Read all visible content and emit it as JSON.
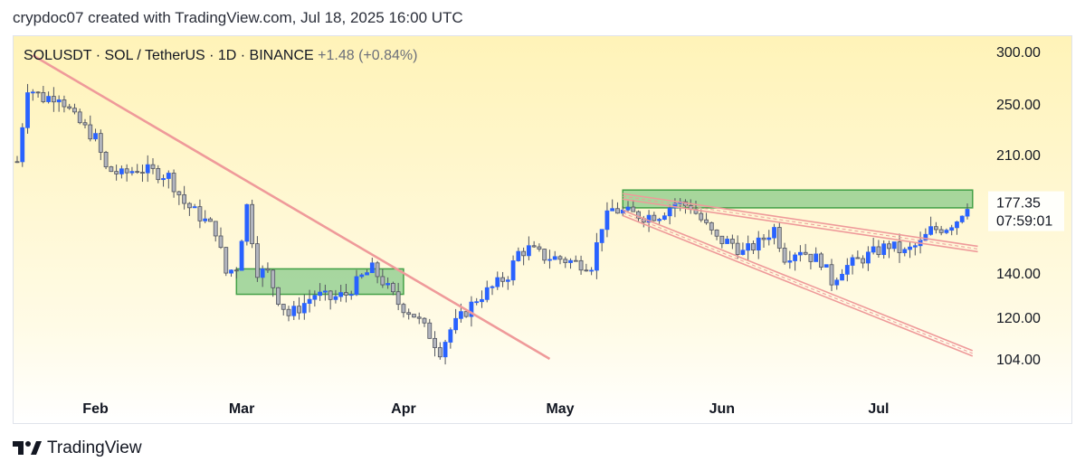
{
  "header": {
    "attribution": "crypdoc07 created with TradingView.com, Jul 18, 2025 16:00 UTC"
  },
  "legend": {
    "symbol_line": "SOLUSDT · SOL / TetherUS · 1D · BINANCE",
    "change": "+1.48 (+0.84%)"
  },
  "footer": {
    "brand": "TradingView"
  },
  "colors": {
    "up": "#2962ff",
    "down": "#b2b5be",
    "up_border": "#2962ff",
    "down_border": "#50535e",
    "wick": "#50535e",
    "trendline": "#ef9a9a",
    "zone_fill": "#81c784",
    "zone_border": "#43a047",
    "bg_top": "#fff2b3",
    "bg_bottom": "#ffffff",
    "price_tag": "#ffffff"
  },
  "chart_data": {
    "type": "candlestick",
    "symbol": "SOLUSDT",
    "timeframe": "1D",
    "exchange": "BINANCE",
    "scale": "log",
    "y_ticks": [
      300,
      250,
      210,
      140,
      120,
      104
    ],
    "y_tick_labels": [
      "300.00",
      "250.00",
      "210.00",
      "140.00",
      "120.00",
      "104.00"
    ],
    "x_ticks": [
      {
        "label": "Feb",
        "date": "2025-02-01"
      },
      {
        "label": "Mar",
        "date": "2025-03-01"
      },
      {
        "label": "Apr",
        "date": "2025-04-01"
      },
      {
        "label": "May",
        "date": "2025-05-01"
      },
      {
        "label": "Jun",
        "date": "2025-06-01"
      },
      {
        "label": "Jul",
        "date": "2025-07-01"
      }
    ],
    "x_range": [
      "2025-01-17",
      "2025-07-18"
    ],
    "y_range": [
      97,
      310
    ],
    "last_price": {
      "value": 177.35,
      "label": "177.35",
      "countdown": "07:59:01"
    },
    "close_path": [
      [
        "2025-01-17",
        205
      ],
      [
        "2025-01-19",
        265
      ],
      [
        "2025-01-22",
        255
      ],
      [
        "2025-01-25",
        258
      ],
      [
        "2025-01-28",
        238
      ],
      [
        "2025-02-01",
        222
      ],
      [
        "2025-02-03",
        200
      ],
      [
        "2025-02-06",
        196
      ],
      [
        "2025-02-09",
        200
      ],
      [
        "2025-02-12",
        198
      ],
      [
        "2025-02-15",
        195
      ],
      [
        "2025-02-18",
        178
      ],
      [
        "2025-02-21",
        170
      ],
      [
        "2025-02-24",
        162
      ],
      [
        "2025-02-26",
        140
      ],
      [
        "2025-02-28",
        143
      ],
      [
        "2025-03-02",
        176
      ],
      [
        "2025-03-04",
        141
      ],
      [
        "2025-03-06",
        140
      ],
      [
        "2025-03-08",
        128
      ],
      [
        "2025-03-10",
        121
      ],
      [
        "2025-03-12",
        124
      ],
      [
        "2025-03-15",
        130
      ],
      [
        "2025-03-18",
        128
      ],
      [
        "2025-03-21",
        130
      ],
      [
        "2025-03-24",
        138
      ],
      [
        "2025-03-26",
        142
      ],
      [
        "2025-03-28",
        136
      ],
      [
        "2025-03-31",
        126
      ],
      [
        "2025-04-03",
        121
      ],
      [
        "2025-04-06",
        113
      ],
      [
        "2025-04-08",
        107
      ],
      [
        "2025-04-10",
        115
      ],
      [
        "2025-04-12",
        120
      ],
      [
        "2025-04-15",
        128
      ],
      [
        "2025-04-18",
        133
      ],
      [
        "2025-04-21",
        139
      ],
      [
        "2025-04-23",
        150
      ],
      [
        "2025-04-25",
        152
      ],
      [
        "2025-04-28",
        148
      ],
      [
        "2025-05-01",
        147
      ],
      [
        "2025-05-04",
        145
      ],
      [
        "2025-05-07",
        144
      ],
      [
        "2025-05-09",
        165
      ],
      [
        "2025-05-11",
        174
      ],
      [
        "2025-05-14",
        172
      ],
      [
        "2025-05-17",
        170
      ],
      [
        "2025-05-20",
        171
      ],
      [
        "2025-05-23",
        178
      ],
      [
        "2025-05-26",
        176
      ],
      [
        "2025-05-28",
        168
      ],
      [
        "2025-05-31",
        157
      ],
      [
        "2025-06-03",
        155
      ],
      [
        "2025-06-05",
        150
      ],
      [
        "2025-06-08",
        155
      ],
      [
        "2025-06-11",
        163
      ],
      [
        "2025-06-13",
        148
      ],
      [
        "2025-06-16",
        152
      ],
      [
        "2025-06-18",
        148
      ],
      [
        "2025-06-20",
        146
      ],
      [
        "2025-06-22",
        136
      ],
      [
        "2025-06-24",
        142
      ],
      [
        "2025-06-27",
        146
      ],
      [
        "2025-06-30",
        150
      ],
      [
        "2025-07-03",
        154
      ],
      [
        "2025-07-06",
        150
      ],
      [
        "2025-07-09",
        155
      ],
      [
        "2025-07-11",
        162
      ],
      [
        "2025-07-14",
        164
      ],
      [
        "2025-07-16",
        168
      ],
      [
        "2025-07-18",
        177.35
      ]
    ],
    "annotations": {
      "lines": [
        {
          "name": "descending-trendline",
          "from": [
            "2025-01-20",
            296
          ],
          "to": [
            "2025-04-29",
            104
          ],
          "style": "solid"
        },
        {
          "name": "wedge-upper",
          "from": [
            "2025-05-13",
            182
          ],
          "to": [
            "2025-07-20",
            152
          ],
          "style": "channel"
        },
        {
          "name": "wedge-lower",
          "from": [
            "2025-05-13",
            172
          ],
          "to": [
            "2025-07-19",
            106
          ],
          "style": "channel"
        }
      ],
      "zones": [
        {
          "name": "support-zone-march",
          "from": [
            "2025-02-28",
            142
          ],
          "to": [
            "2025-04-01",
            130
          ]
        },
        {
          "name": "resistance-zone-may-jul",
          "from": [
            "2025-05-13",
            186
          ],
          "to": [
            "2025-07-19",
            175
          ]
        }
      ]
    }
  }
}
